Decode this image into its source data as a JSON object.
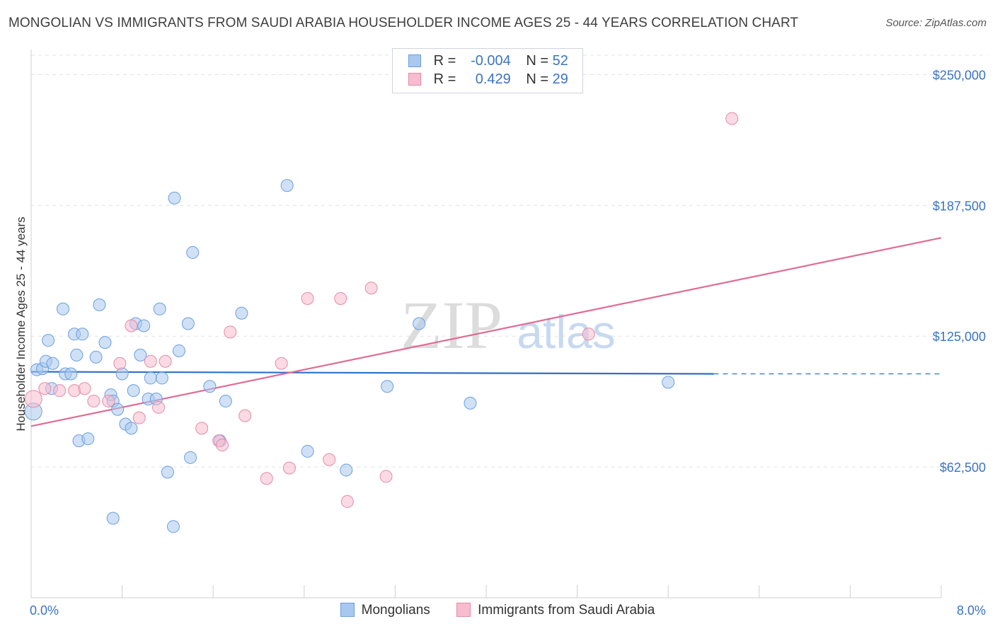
{
  "header": {
    "title": "MONGOLIAN VS IMMIGRANTS FROM SAUDI ARABIA HOUSEHOLDER INCOME AGES 25 - 44 YEARS CORRELATION CHART",
    "source": "Source: ZipAtlas.com"
  },
  "watermark": {
    "zip": "ZIP",
    "atlas": "atlas"
  },
  "legend": {
    "rows": [
      {
        "r_label": "R =",
        "r_value": "-0.004",
        "n_label": "N =",
        "n_value": "52",
        "color": "#a9c8ee",
        "border": "#6b9ee0"
      },
      {
        "r_label": "R =",
        "r_value": "0.429",
        "n_label": "N =",
        "n_value": "29",
        "color": "#f7bccd",
        "border": "#e58aa6"
      }
    ]
  },
  "bottom_legend": {
    "items": [
      {
        "label": "Mongolians",
        "color": "#a9c8ee",
        "border": "#6b9ee0"
      },
      {
        "label": "Immigrants from Saudi Arabia",
        "color": "#f7bccd",
        "border": "#e58aa6"
      }
    ]
  },
  "chart_data": {
    "type": "scatter",
    "title": "MONGOLIAN VS IMMIGRANTS FROM SAUDI ARABIA HOUSEHOLDER INCOME AGES 25 - 44 YEARS CORRELATION CHART",
    "xlabel": "",
    "ylabel": "Householder Income Ages 25 - 44 years",
    "xlim": [
      0,
      8
    ],
    "ylim": [
      0,
      262000
    ],
    "x_tick_labels": [
      {
        "value": 0,
        "label": "0.0%"
      },
      {
        "value": 8,
        "label": "8.0%"
      }
    ],
    "y_ticks": [
      {
        "value": 62500,
        "label": "$62,500"
      },
      {
        "value": 125000,
        "label": "$125,000"
      },
      {
        "value": 187500,
        "label": "$187,500"
      },
      {
        "value": 250000,
        "label": "$250,000"
      }
    ],
    "grid": true,
    "legend_position": "top-center",
    "series": [
      {
        "name": "Mongolians",
        "color": "#6b9ee0",
        "fill": "#a9c8ee",
        "trend": {
          "x0": 0.0,
          "y0": 108000,
          "x1": 6.0,
          "y1": 107000,
          "x_dash_end": 8.0,
          "y_dash_end": 107000
        },
        "points": [
          [
            0.02,
            89000
          ],
          [
            0.05,
            109000
          ],
          [
            0.1,
            109500
          ],
          [
            0.13,
            113000
          ],
          [
            0.18,
            100000
          ],
          [
            0.19,
            112000
          ],
          [
            0.28,
            138000
          ],
          [
            0.15,
            123000
          ],
          [
            0.3,
            107000
          ],
          [
            0.35,
            107000
          ],
          [
            0.38,
            126000
          ],
          [
            0.45,
            126000
          ],
          [
            0.4,
            116000
          ],
          [
            0.42,
            75000
          ],
          [
            0.5,
            76000
          ],
          [
            0.6,
            140000
          ],
          [
            0.57,
            115000
          ],
          [
            0.65,
            122000
          ],
          [
            0.7,
            97000
          ],
          [
            0.72,
            94000
          ],
          [
            0.76,
            90000
          ],
          [
            0.8,
            107000
          ],
          [
            0.83,
            83000
          ],
          [
            0.88,
            81000
          ],
          [
            0.9,
            99000
          ],
          [
            0.92,
            131000
          ],
          [
            0.96,
            116000
          ],
          [
            0.99,
            130000
          ],
          [
            1.03,
            95000
          ],
          [
            1.05,
            105000
          ],
          [
            1.1,
            95000
          ],
          [
            1.13,
            138000
          ],
          [
            1.15,
            105000
          ],
          [
            1.2,
            60000
          ],
          [
            1.26,
            191000
          ],
          [
            1.3,
            118000
          ],
          [
            1.38,
            131000
          ],
          [
            1.42,
            165000
          ],
          [
            1.4,
            67000
          ],
          [
            1.57,
            101000
          ],
          [
            1.66,
            75000
          ],
          [
            1.71,
            94000
          ],
          [
            1.85,
            136000
          ],
          [
            2.25,
            197000
          ],
          [
            2.43,
            70000
          ],
          [
            2.77,
            61000
          ],
          [
            3.13,
            101000
          ],
          [
            3.41,
            131000
          ],
          [
            3.86,
            93000
          ],
          [
            5.6,
            103000
          ],
          [
            0.72,
            38000
          ],
          [
            1.25,
            34000
          ]
        ]
      },
      {
        "name": "Immigrants from Saudi Arabia",
        "color": "#e58aa6",
        "fill": "#f7bccd",
        "trend": {
          "x0": 0.0,
          "y0": 82000,
          "x1": 8.0,
          "y1": 172000
        },
        "points": [
          [
            0.02,
            95000
          ],
          [
            0.12,
            100000
          ],
          [
            0.25,
            99000
          ],
          [
            0.38,
            99000
          ],
          [
            0.47,
            100000
          ],
          [
            0.55,
            94000
          ],
          [
            0.68,
            94000
          ],
          [
            0.78,
            112000
          ],
          [
            0.88,
            130000
          ],
          [
            0.95,
            86000
          ],
          [
            1.05,
            113000
          ],
          [
            1.12,
            91000
          ],
          [
            1.18,
            113000
          ],
          [
            1.5,
            81000
          ],
          [
            1.65,
            75000
          ],
          [
            1.68,
            73000
          ],
          [
            1.75,
            127000
          ],
          [
            1.88,
            87000
          ],
          [
            2.07,
            57000
          ],
          [
            2.2,
            112000
          ],
          [
            2.27,
            62000
          ],
          [
            2.43,
            143000
          ],
          [
            2.62,
            66000
          ],
          [
            2.72,
            143000
          ],
          [
            2.78,
            46000
          ],
          [
            2.99,
            148000
          ],
          [
            3.12,
            58000
          ],
          [
            4.9,
            126000
          ],
          [
            6.16,
            229000
          ]
        ]
      }
    ]
  }
}
